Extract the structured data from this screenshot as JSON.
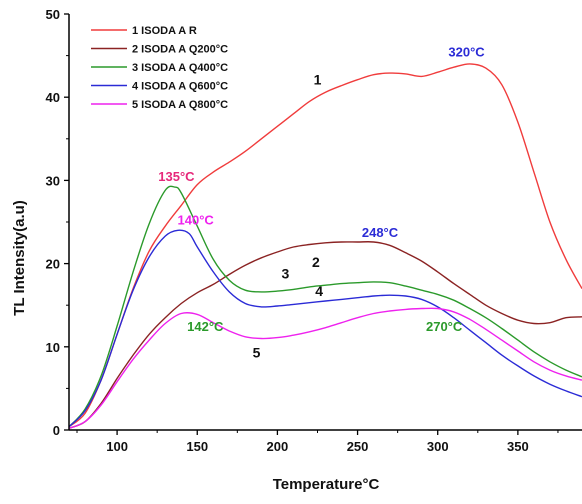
{
  "chart_data": {
    "type": "line",
    "xlabel": "Temperature°C",
    "ylabel": "TL Intensity(a.u)",
    "xlim": [
      70,
      390
    ],
    "ylim": [
      0,
      50
    ],
    "x_ticks": [
      100,
      150,
      200,
      250,
      300,
      350
    ],
    "x_tick_labels": [
      "100",
      "150",
      "200",
      "250",
      "300",
      "350"
    ],
    "y_ticks": [
      0,
      10,
      20,
      30,
      40,
      50
    ],
    "y_tick_labels": [
      "0",
      "10",
      "20",
      "30",
      "40",
      "50"
    ],
    "grid": false,
    "legend_position": "top-left",
    "series": [
      {
        "name": "1 ISODA A R",
        "color": "#f03c3c",
        "curve_label": "1",
        "curve_label_at": [
          225,
          41.5
        ],
        "points": [
          [
            70,
            0.4
          ],
          [
            80,
            2
          ],
          [
            90,
            6
          ],
          [
            100,
            11.5
          ],
          [
            110,
            17
          ],
          [
            120,
            21.5
          ],
          [
            130,
            24.5
          ],
          [
            140,
            27
          ],
          [
            150,
            29.5
          ],
          [
            160,
            31
          ],
          [
            170,
            32.2
          ],
          [
            180,
            33.5
          ],
          [
            190,
            35
          ],
          [
            200,
            36.5
          ],
          [
            210,
            38
          ],
          [
            220,
            39.5
          ],
          [
            230,
            40.6
          ],
          [
            240,
            41.4
          ],
          [
            250,
            42.1
          ],
          [
            260,
            42.7
          ],
          [
            270,
            42.9
          ],
          [
            280,
            42.8
          ],
          [
            290,
            42.5
          ],
          [
            300,
            43
          ],
          [
            310,
            43.6
          ],
          [
            320,
            44
          ],
          [
            330,
            43.5
          ],
          [
            340,
            41.5
          ],
          [
            350,
            37
          ],
          [
            360,
            31
          ],
          [
            370,
            25
          ],
          [
            380,
            20.5
          ],
          [
            390,
            17
          ]
        ]
      },
      {
        "name": "2 ISODA A Q200°C",
        "color": "#8b2323",
        "curve_label": "2",
        "curve_label_at": [
          224,
          19.6
        ],
        "points": [
          [
            70,
            0.2
          ],
          [
            80,
            1
          ],
          [
            90,
            3.2
          ],
          [
            100,
            6.2
          ],
          [
            110,
            9
          ],
          [
            120,
            11.5
          ],
          [
            130,
            13.5
          ],
          [
            140,
            15.2
          ],
          [
            150,
            16.5
          ],
          [
            160,
            17.5
          ],
          [
            170,
            18.7
          ],
          [
            180,
            19.8
          ],
          [
            190,
            20.7
          ],
          [
            200,
            21.4
          ],
          [
            210,
            22
          ],
          [
            220,
            22.3
          ],
          [
            230,
            22.5
          ],
          [
            240,
            22.6
          ],
          [
            250,
            22.6
          ],
          [
            260,
            22.6
          ],
          [
            270,
            22.2
          ],
          [
            280,
            21.3
          ],
          [
            290,
            20.3
          ],
          [
            300,
            19
          ],
          [
            310,
            17.6
          ],
          [
            320,
            16.3
          ],
          [
            330,
            15
          ],
          [
            340,
            14
          ],
          [
            350,
            13.2
          ],
          [
            360,
            12.8
          ],
          [
            370,
            12.9
          ],
          [
            380,
            13.5
          ],
          [
            390,
            13.6
          ]
        ]
      },
      {
        "name": "3 ISODA A Q400°C",
        "color": "#2b9a2b",
        "curve_label": "3",
        "curve_label_at": [
          205,
          18.2
        ],
        "points": [
          [
            70,
            0.4
          ],
          [
            80,
            2.5
          ],
          [
            90,
            6.5
          ],
          [
            100,
            12.5
          ],
          [
            110,
            19
          ],
          [
            120,
            24.8
          ],
          [
            130,
            28.8
          ],
          [
            136,
            29.2
          ],
          [
            140,
            28.5
          ],
          [
            150,
            24.5
          ],
          [
            160,
            20.5
          ],
          [
            170,
            18
          ],
          [
            180,
            16.8
          ],
          [
            190,
            16.6
          ],
          [
            200,
            16.7
          ],
          [
            210,
            16.9
          ],
          [
            220,
            17.2
          ],
          [
            230,
            17.4
          ],
          [
            240,
            17.6
          ],
          [
            250,
            17.7
          ],
          [
            260,
            17.8
          ],
          [
            270,
            17.7
          ],
          [
            280,
            17.3
          ],
          [
            290,
            16.8
          ],
          [
            300,
            16.3
          ],
          [
            310,
            15.6
          ],
          [
            320,
            14.6
          ],
          [
            330,
            13.5
          ],
          [
            340,
            12.2
          ],
          [
            350,
            10.8
          ],
          [
            360,
            9.4
          ],
          [
            370,
            8.2
          ],
          [
            380,
            7.2
          ],
          [
            390,
            6.4
          ]
        ]
      },
      {
        "name": "4 ISODA A Q600°C",
        "color": "#2b2bd6",
        "curve_label": "4",
        "curve_label_at": [
          226,
          16.1
        ],
        "points": [
          [
            70,
            0.4
          ],
          [
            80,
            2.3
          ],
          [
            90,
            6
          ],
          [
            100,
            11.5
          ],
          [
            110,
            16.8
          ],
          [
            120,
            20.8
          ],
          [
            130,
            23.3
          ],
          [
            138,
            24
          ],
          [
            145,
            23.6
          ],
          [
            150,
            22
          ],
          [
            160,
            19
          ],
          [
            170,
            16.6
          ],
          [
            180,
            15.2
          ],
          [
            190,
            14.8
          ],
          [
            200,
            14.9
          ],
          [
            210,
            15.1
          ],
          [
            220,
            15.3
          ],
          [
            230,
            15.5
          ],
          [
            240,
            15.7
          ],
          [
            250,
            15.9
          ],
          [
            260,
            16.1
          ],
          [
            270,
            16.2
          ],
          [
            280,
            16.1
          ],
          [
            290,
            15.7
          ],
          [
            300,
            14.8
          ],
          [
            310,
            13.5
          ],
          [
            320,
            12
          ],
          [
            330,
            10.5
          ],
          [
            340,
            9
          ],
          [
            350,
            7.7
          ],
          [
            360,
            6.5
          ],
          [
            370,
            5.5
          ],
          [
            380,
            4.7
          ],
          [
            390,
            4
          ]
        ]
      },
      {
        "name": "5 ISODA A Q800°C",
        "color": "#ee22ee",
        "curve_label": "5",
        "curve_label_at": [
          187,
          8.7
        ],
        "points": [
          [
            70,
            0.2
          ],
          [
            80,
            1
          ],
          [
            90,
            3
          ],
          [
            100,
            5.8
          ],
          [
            110,
            8.5
          ],
          [
            120,
            10.8
          ],
          [
            130,
            12.8
          ],
          [
            140,
            14
          ],
          [
            150,
            13.9
          ],
          [
            160,
            12.9
          ],
          [
            170,
            11.9
          ],
          [
            180,
            11.2
          ],
          [
            190,
            11
          ],
          [
            200,
            11.1
          ],
          [
            210,
            11.4
          ],
          [
            220,
            11.8
          ],
          [
            230,
            12.3
          ],
          [
            240,
            12.9
          ],
          [
            250,
            13.5
          ],
          [
            260,
            14
          ],
          [
            270,
            14.3
          ],
          [
            280,
            14.5
          ],
          [
            290,
            14.6
          ],
          [
            300,
            14.6
          ],
          [
            310,
            14.2
          ],
          [
            320,
            13.3
          ],
          [
            330,
            12.1
          ],
          [
            340,
            10.8
          ],
          [
            350,
            9.5
          ],
          [
            360,
            8.2
          ],
          [
            370,
            7.2
          ],
          [
            380,
            6.5
          ],
          [
            390,
            6
          ]
        ]
      }
    ],
    "annotations": [
      {
        "text": "320°C",
        "color": "#2b2bd6",
        "at": [
          318,
          44.9
        ]
      },
      {
        "text": "135°C",
        "color": "#e6287a",
        "at": [
          137,
          29.9
        ]
      },
      {
        "text": "140°C",
        "color": "#ee22ee",
        "at": [
          149,
          24.7
        ]
      },
      {
        "text": "248°C",
        "color": "#2b2bd6",
        "at": [
          264,
          23.2
        ]
      },
      {
        "text": "142°C",
        "color": "#2b9a2b",
        "at": [
          155,
          11.9
        ]
      },
      {
        "text": "270°C",
        "color": "#2b9a2b",
        "at": [
          304,
          11.9
        ]
      }
    ]
  }
}
